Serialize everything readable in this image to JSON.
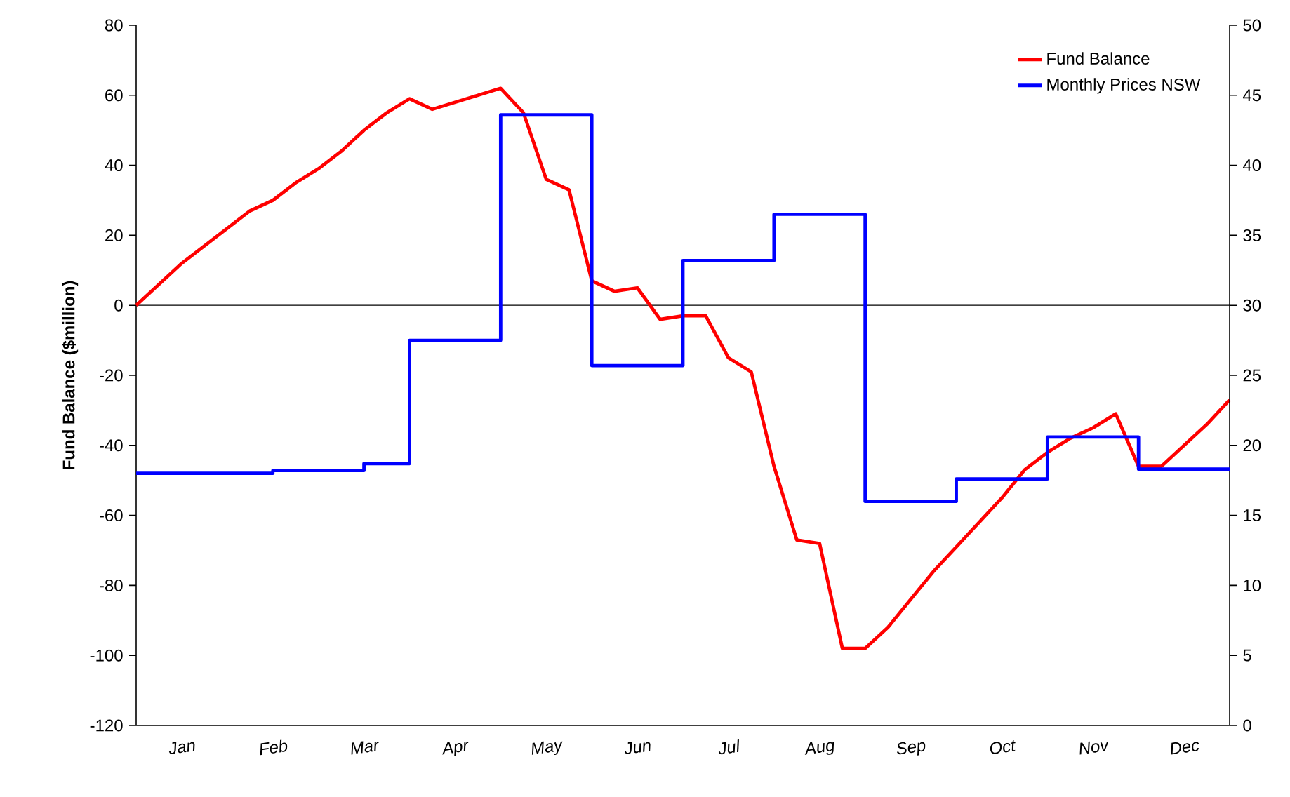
{
  "chart_data": {
    "type": "line",
    "ylabel": "Fund Balance ($million)",
    "categories": [
      null,
      null,
      "Jan",
      null,
      null,
      null,
      "Feb",
      null,
      null,
      null,
      "Mar",
      null,
      null,
      null,
      "Apr",
      null,
      null,
      null,
      "May",
      null,
      null,
      null,
      "Jun",
      null,
      null,
      null,
      "Jul",
      null,
      null,
      null,
      "Aug",
      null,
      null,
      null,
      "Sep",
      null,
      null,
      null,
      "Oct",
      null,
      null,
      null,
      "Nov",
      null,
      null,
      null,
      "Dec",
      null,
      null
    ],
    "ylim": [
      -120,
      80
    ],
    "yticks": [
      -120,
      -100,
      -80,
      -60,
      -40,
      -20,
      0,
      20,
      40,
      60,
      80
    ],
    "y2lim": [
      0,
      50
    ],
    "y2ticks": [
      0,
      5,
      10,
      15,
      20,
      25,
      30,
      35,
      40,
      45,
      50
    ],
    "legend": "top right",
    "ref_lines": [
      {
        "axis": "y",
        "value": 0,
        "color": "#000000"
      }
    ],
    "series": [
      {
        "name": "Fund Balance",
        "color": "#ff0000",
        "values": [
          0,
          6,
          12,
          17,
          22,
          27,
          30,
          35,
          39,
          44,
          50,
          55,
          59,
          56,
          58,
          60,
          62,
          55,
          36,
          33,
          7,
          4,
          5,
          -4,
          -3,
          -3,
          -15,
          -19,
          -46,
          -67,
          -68,
          -98,
          -98,
          -92,
          -84,
          -76,
          -69,
          -62,
          -55,
          -47,
          -42,
          -38,
          -35,
          -31,
          -46,
          -46,
          -40,
          -34,
          -27
        ]
      },
      {
        "name": "Monthly Prices NSW",
        "type": "step",
        "axis": "y2",
        "color": "#0000ff",
        "values": [
          18,
          18,
          18,
          18,
          18,
          18,
          18.2,
          18.2,
          18.2,
          18.2,
          18.7,
          18.7,
          27.5,
          27.5,
          27.5,
          27.5,
          43.6,
          43.6,
          43.6,
          43.6,
          25.7,
          25.7,
          25.7,
          25.7,
          33.2,
          33.2,
          33.2,
          33.2,
          36.5,
          36.5,
          36.5,
          36.5,
          16,
          16,
          16,
          16,
          17.6,
          17.6,
          17.6,
          17.6,
          20.6,
          20.6,
          20.6,
          20.6,
          18.3,
          18.3,
          18.3,
          18.3,
          18.3
        ]
      }
    ]
  }
}
